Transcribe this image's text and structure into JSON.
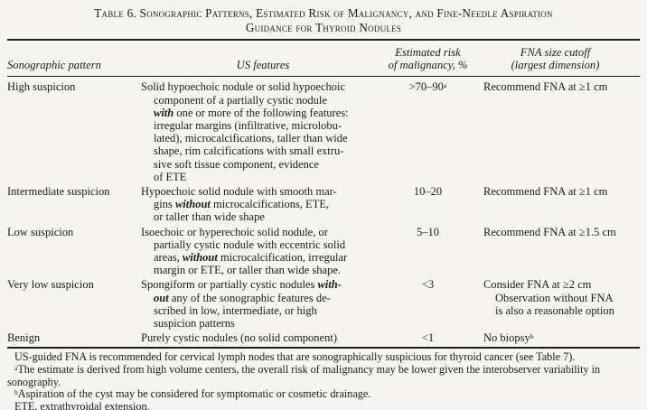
{
  "colors": {
    "text": "#1b1b1b",
    "background": "#f6f5f2",
    "rule": "#1d1d1d"
  },
  "title": {
    "line1": "Table 6. Sonographic Patterns, Estimated Risk of Malignancy, and Fine-Needle Aspiration",
    "line2": "Guidance for Thyroid Nodules"
  },
  "header": {
    "cols": [
      {
        "lines": [
          "Sonographic pattern"
        ]
      },
      {
        "lines": [
          "US features"
        ]
      },
      {
        "lines": [
          "Estimated risk",
          "of malignancy, %"
        ]
      },
      {
        "lines": [
          "FNA size cutoff",
          "(largest dimension)"
        ]
      }
    ]
  },
  "rows": [
    {
      "pattern": "High suspicion",
      "features_lines": [
        [
          {
            "t": "Solid hypoechoic nodule or solid hypoechoic"
          }
        ],
        [
          {
            "t": "component of a partially cystic nodule"
          }
        ],
        [
          {
            "t": "with",
            "bi": true
          },
          {
            "t": " one or more of the following features:"
          }
        ],
        [
          {
            "t": "irregular margins (infiltrative, microlobu-"
          }
        ],
        [
          {
            "t": "lated), microcalcifications, taller than wide"
          }
        ],
        [
          {
            "t": "shape, rim calcifications with small extru-"
          }
        ],
        [
          {
            "t": "sive soft tissue component, evidence"
          }
        ],
        [
          {
            "t": "of ETE"
          }
        ]
      ],
      "risk": [
        {
          "t": ">70–90"
        },
        {
          "t": "a",
          "sup": true
        }
      ],
      "fna_lines": [
        [
          {
            "t": "Recommend FNA at ≥1 cm"
          }
        ]
      ]
    },
    {
      "pattern": "Intermediate suspicion",
      "features_lines": [
        [
          {
            "t": "Hypoechoic solid nodule with smooth mar-"
          }
        ],
        [
          {
            "t": "gins "
          },
          {
            "t": "without",
            "bi": true
          },
          {
            "t": " microcalcifications, ETE,"
          }
        ],
        [
          {
            "t": "or taller than wide shape"
          }
        ]
      ],
      "risk": [
        {
          "t": "10–20"
        }
      ],
      "fna_lines": [
        [
          {
            "t": "Recommend FNA at ≥1 cm"
          }
        ]
      ]
    },
    {
      "pattern": "Low suspicion",
      "features_lines": [
        [
          {
            "t": "Isoechoic or hyperechoic solid nodule, or"
          }
        ],
        [
          {
            "t": "partially cystic nodule with eccentric solid"
          }
        ],
        [
          {
            "t": "areas, "
          },
          {
            "t": "without",
            "bi": true
          },
          {
            "t": " microcalcification, irregular"
          }
        ],
        [
          {
            "t": "margin or ETE, or taller than wide shape."
          }
        ]
      ],
      "risk": [
        {
          "t": "5–10"
        }
      ],
      "fna_lines": [
        [
          {
            "t": "Recommend FNA at ≥1.5 cm"
          }
        ]
      ]
    },
    {
      "pattern": "Very low suspicion",
      "features_lines": [
        [
          {
            "t": "Spongiform or partially cystic nodules "
          },
          {
            "t": "with-",
            "bi": true
          }
        ],
        [
          {
            "t": "out",
            "bi": true
          },
          {
            "t": " any of the sonographic features de-"
          }
        ],
        [
          {
            "t": "scribed in low, intermediate, or high"
          }
        ],
        [
          {
            "t": "suspicion patterns"
          }
        ]
      ],
      "risk": [
        {
          "t": "<3"
        }
      ],
      "fna_lines": [
        [
          {
            "t": "Consider FNA at ≥2 cm"
          }
        ],
        [
          {
            "t": "Observation without FNA"
          }
        ],
        [
          {
            "t": "is also a reasonable option"
          }
        ]
      ]
    },
    {
      "pattern": "Benign",
      "features_lines": [
        [
          {
            "t": "Purely cystic nodules (no solid component)"
          }
        ]
      ],
      "risk": [
        {
          "t": "<1"
        }
      ],
      "fna_lines": [
        [
          {
            "t": "No biopsy"
          },
          {
            "t": "b",
            "sup": true
          }
        ]
      ]
    }
  ],
  "footnotes": [
    [
      {
        "t": "US-guided FNA is recommended for cervical lymph nodes that are sonographically suspicious for thyroid cancer (see Table 7)."
      }
    ],
    [
      {
        "t": "a",
        "sup": true
      },
      {
        "t": "The estimate is derived from high volume centers, the overall risk of malignancy may be lower given the interobserver variability in sonography."
      }
    ],
    [
      {
        "t": "b",
        "sup": true
      },
      {
        "t": "Aspiration of the cyst may be considered for symptomatic or cosmetic drainage."
      }
    ],
    [
      {
        "t": "ETE, extrathyroidal extension."
      }
    ]
  ]
}
